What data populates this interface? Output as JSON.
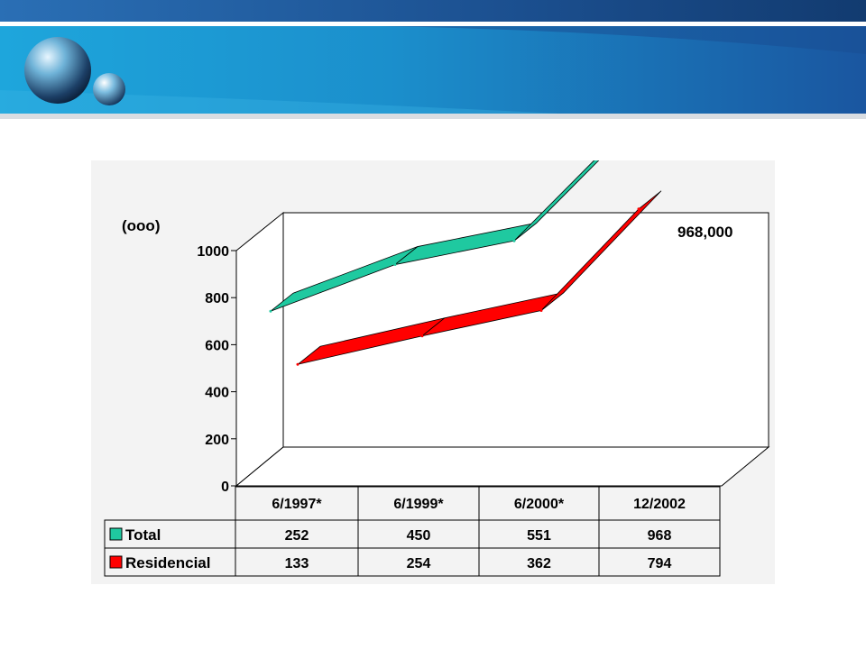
{
  "chart_data": {
    "type": "line",
    "ylabel": "(ooo)",
    "ylim": [
      0,
      1000
    ],
    "yticks": [
      "0",
      "200",
      "400",
      "600",
      "800",
      "1000"
    ],
    "categories": [
      "6/1997*",
      "6/1999*",
      "6/2000*",
      "12/2002"
    ],
    "annotation": "968,000",
    "series": [
      {
        "name": "Total",
        "values": [
          252,
          450,
          551,
          968
        ],
        "labels": [
          "252",
          "450",
          "551",
          "968"
        ],
        "color": "#1fc9a0"
      },
      {
        "name": "Residencial",
        "values": [
          133,
          254,
          362,
          794
        ],
        "labels": [
          "133",
          "254",
          "362",
          "794"
        ],
        "color": "#ff0000"
      }
    ]
  },
  "colors": {
    "header_dark": "#1a4f8f",
    "header_light": "#1fa2d8"
  }
}
